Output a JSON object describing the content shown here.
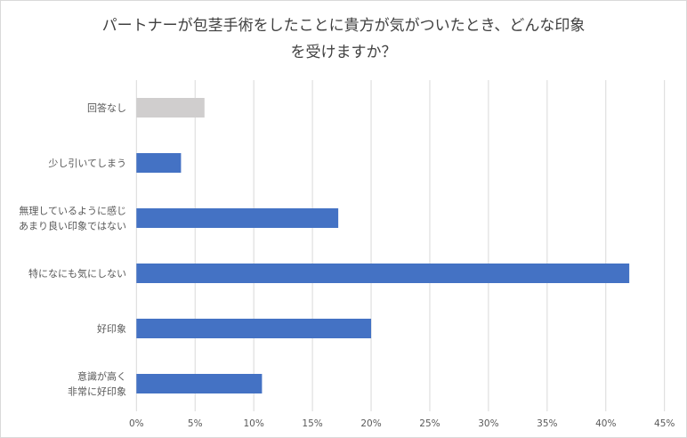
{
  "chart_data": {
    "type": "bar",
    "orientation": "horizontal",
    "title_lines": [
      "パートナーが包茎手術をしたことに貴方が気がついたとき、どんな印象",
      "を受けますか？"
    ],
    "categories": [
      [
        "回答なし"
      ],
      [
        "少し引いてしまう"
      ],
      [
        "無理しているように感じ",
        "あまり良い印象ではない"
      ],
      [
        "特になにも気にしない"
      ],
      [
        "好印象"
      ],
      [
        "意識が高く",
        "非常に好印象"
      ]
    ],
    "values": [
      5.8,
      3.8,
      17.2,
      42.0,
      20.0,
      10.7
    ],
    "colors": [
      "#d0cece",
      "#4472c4",
      "#4472c4",
      "#4472c4",
      "#4472c4",
      "#4472c4"
    ],
    "xlim": [
      0,
      45
    ],
    "ticks": [
      0,
      5,
      10,
      15,
      20,
      25,
      30,
      35,
      40,
      45
    ],
    "tick_labels": [
      "0%",
      "5%",
      "10%",
      "15%",
      "20%",
      "25%",
      "30%",
      "35%",
      "40%",
      "45%"
    ],
    "grid": true,
    "xlabel": "",
    "ylabel": ""
  }
}
